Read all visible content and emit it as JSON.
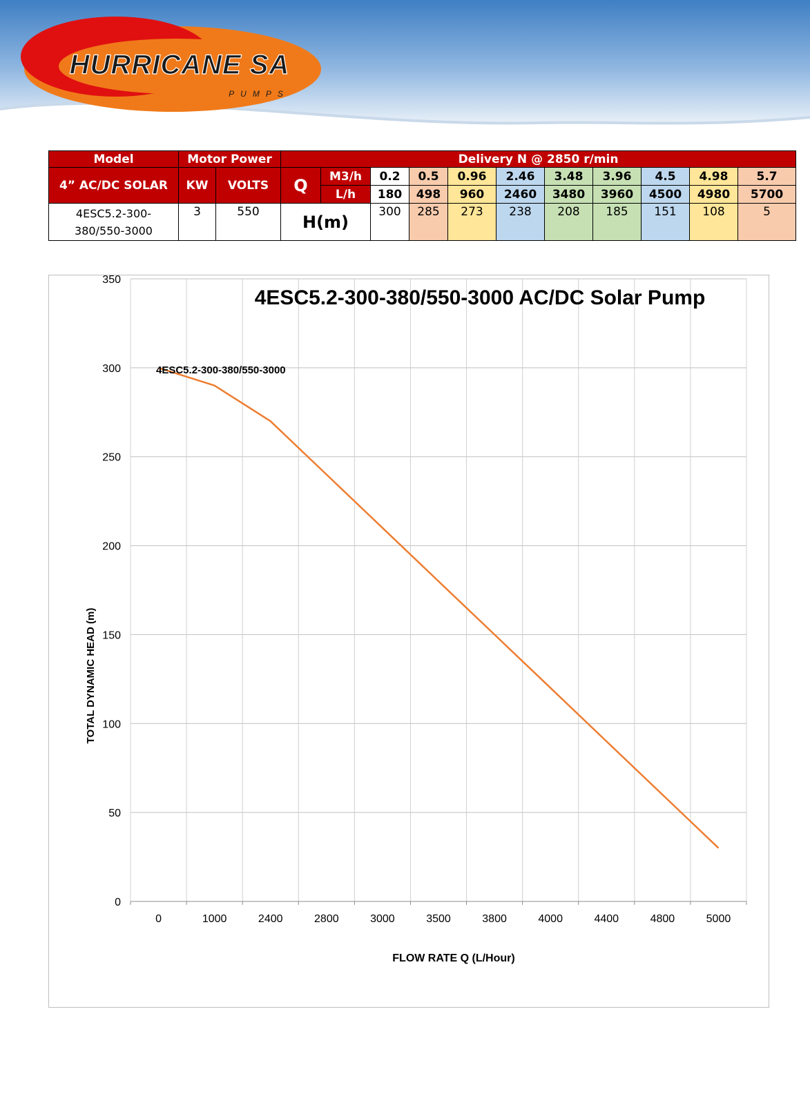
{
  "header": {
    "brand": "HURRICANE SA",
    "tagline": "PUMPS",
    "colors": {
      "red": "#e01010",
      "orange": "#f07a1a",
      "sky": "#4a86c8"
    }
  },
  "spec_table": {
    "model_header": "Model",
    "motor_power_header": "Motor Power",
    "delivery_header": "Delivery N @ 2850 r/min",
    "series_label": "4” AC/DC SOLAR",
    "kw_header": "KW",
    "volts_header": "VOLTS",
    "q_label": "Q",
    "m3h_label": "M3/h",
    "lh_label": "L/h",
    "model_line1": "4ESC5.2-300-",
    "model_line2": "380/550-3000",
    "kw": "3",
    "volts": "550",
    "hm_label": "H(m)",
    "m3h": [
      "0.2",
      "0.5",
      "0.96",
      "2.46",
      "3.48",
      "3.96",
      "4.5",
      "4.98",
      "5.7"
    ],
    "lh": [
      "180",
      "498",
      "960",
      "2460",
      "3480",
      "3960",
      "4500",
      "4980",
      "5700"
    ],
    "head": [
      "300",
      "285",
      "273",
      "238",
      "208",
      "185",
      "151",
      "108",
      "5"
    ],
    "cell_colors": [
      "#ffffff",
      "#f8cbad",
      "#ffe699",
      "#bdd7ee",
      "#c6e0b4",
      "#c6e0b4",
      "#bdd7ee",
      "#ffe699",
      "#f8cbad"
    ]
  },
  "chart_data": {
    "type": "line",
    "title": "4ESC5.2-300-380/550-3000 AC/DC Solar Pump",
    "xlabel": "FLOW RATE Q (L/Hour)",
    "ylabel": "TOTAL DYNAMIC HEAD (m)",
    "categories": [
      "0",
      "1000",
      "2400",
      "2800",
      "3000",
      "3500",
      "3800",
      "4000",
      "4400",
      "4800",
      "5000"
    ],
    "ylim": [
      0,
      350
    ],
    "yticks": [
      0,
      50,
      100,
      150,
      200,
      250,
      300,
      350
    ],
    "grid": true,
    "series": [
      {
        "name": "4ESC5.2-300-380/550-3000",
        "color": "#ed7d31",
        "values": [
          300,
          290,
          270,
          240,
          210,
          180,
          150,
          120,
          90,
          60,
          30
        ]
      }
    ]
  }
}
